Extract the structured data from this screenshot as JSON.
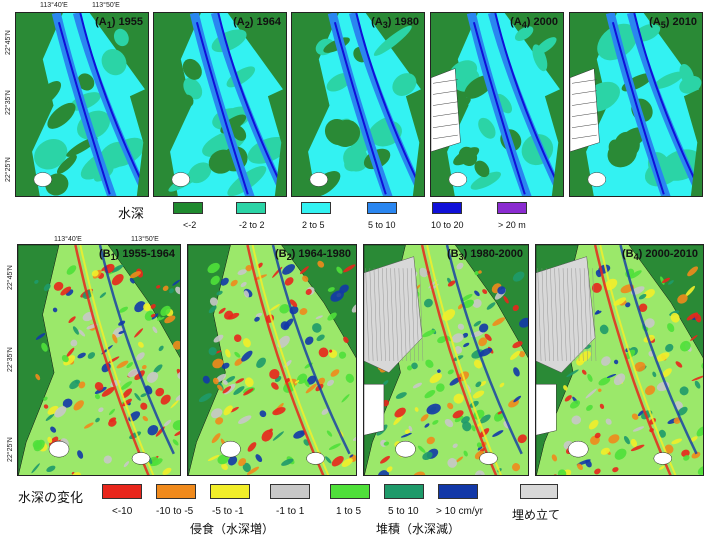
{
  "top_row": {
    "coords_lon": [
      "113°40'E",
      "113°50'E"
    ],
    "coords_lat": [
      "22°45'N",
      "22°35'N",
      "22°25'N"
    ],
    "panels": [
      {
        "id": "A1",
        "prefix": "(A",
        "sub": "1",
        "year": ") 1955"
      },
      {
        "id": "A2",
        "prefix": "(A",
        "sub": "2",
        "year": ") 1964"
      },
      {
        "id": "A3",
        "prefix": "(A",
        "sub": "3",
        "year": ") 1980"
      },
      {
        "id": "A4",
        "prefix": "(A",
        "sub": "4",
        "year": ") 2000"
      },
      {
        "id": "A5",
        "prefix": "(A",
        "sub": "5",
        "year": ") 2010"
      }
    ],
    "legend": {
      "title": "水深",
      "items": [
        {
          "label": "<-2",
          "color": "#1f8a2e"
        },
        {
          "label": "-2 to 2",
          "color": "#2bd4a6"
        },
        {
          "label": "2 to 5",
          "color": "#33f2f2"
        },
        {
          "label": "5 to 10",
          "color": "#2a86f0"
        },
        {
          "label": "10 to 20",
          "color": "#1010d8"
        },
        {
          "label": "> 20 m",
          "color": "#8a2bd0"
        }
      ]
    }
  },
  "bottom_row": {
    "coords_lon": [
      "113°40'E",
      "113°50'E"
    ],
    "coords_lat": [
      "22°45'N",
      "22°35'N",
      "22°25'N"
    ],
    "panels": [
      {
        "id": "B1",
        "prefix": "(B",
        "sub": "1",
        "year": ") 1955-1964"
      },
      {
        "id": "B2",
        "prefix": "(B",
        "sub": "2",
        "year": ") 1964-1980"
      },
      {
        "id": "B3",
        "prefix": "(B",
        "sub": "3",
        "year": ") 1980-2000"
      },
      {
        "id": "B4",
        "prefix": "(B",
        "sub": "4",
        "year": ") 2000-2010"
      }
    ],
    "legend": {
      "title": "水深の変化",
      "items": [
        {
          "label": "<-10",
          "color": "#e8261c"
        },
        {
          "label": "-10 to -5",
          "color": "#f08a1c"
        },
        {
          "label": "-5 to -1",
          "color": "#f2ee2a"
        },
        {
          "label": "-1 to 1",
          "color": "#c8c8c8"
        },
        {
          "label": "1 to 5",
          "color": "#4fe03a"
        },
        {
          "label": "5 to 10",
          "color": "#1e9a6a"
        },
        {
          "label": "> 10 cm/yr",
          "color": "#1238a8"
        },
        {
          "label": "",
          "color": "#d8d8d8"
        }
      ],
      "categories": {
        "erosion": "侵食（水深増）",
        "deposition": "堆積（水深減）",
        "reclamation": "埋め立て"
      }
    }
  },
  "colors": {
    "land": "#2a8a36",
    "shallow": "#2bd4a6",
    "mid": "#33f2f2",
    "deep": "#2a86f0",
    "deeper": "#1010d8",
    "white_land": "#ffffff",
    "change_base": "#9be86a"
  }
}
